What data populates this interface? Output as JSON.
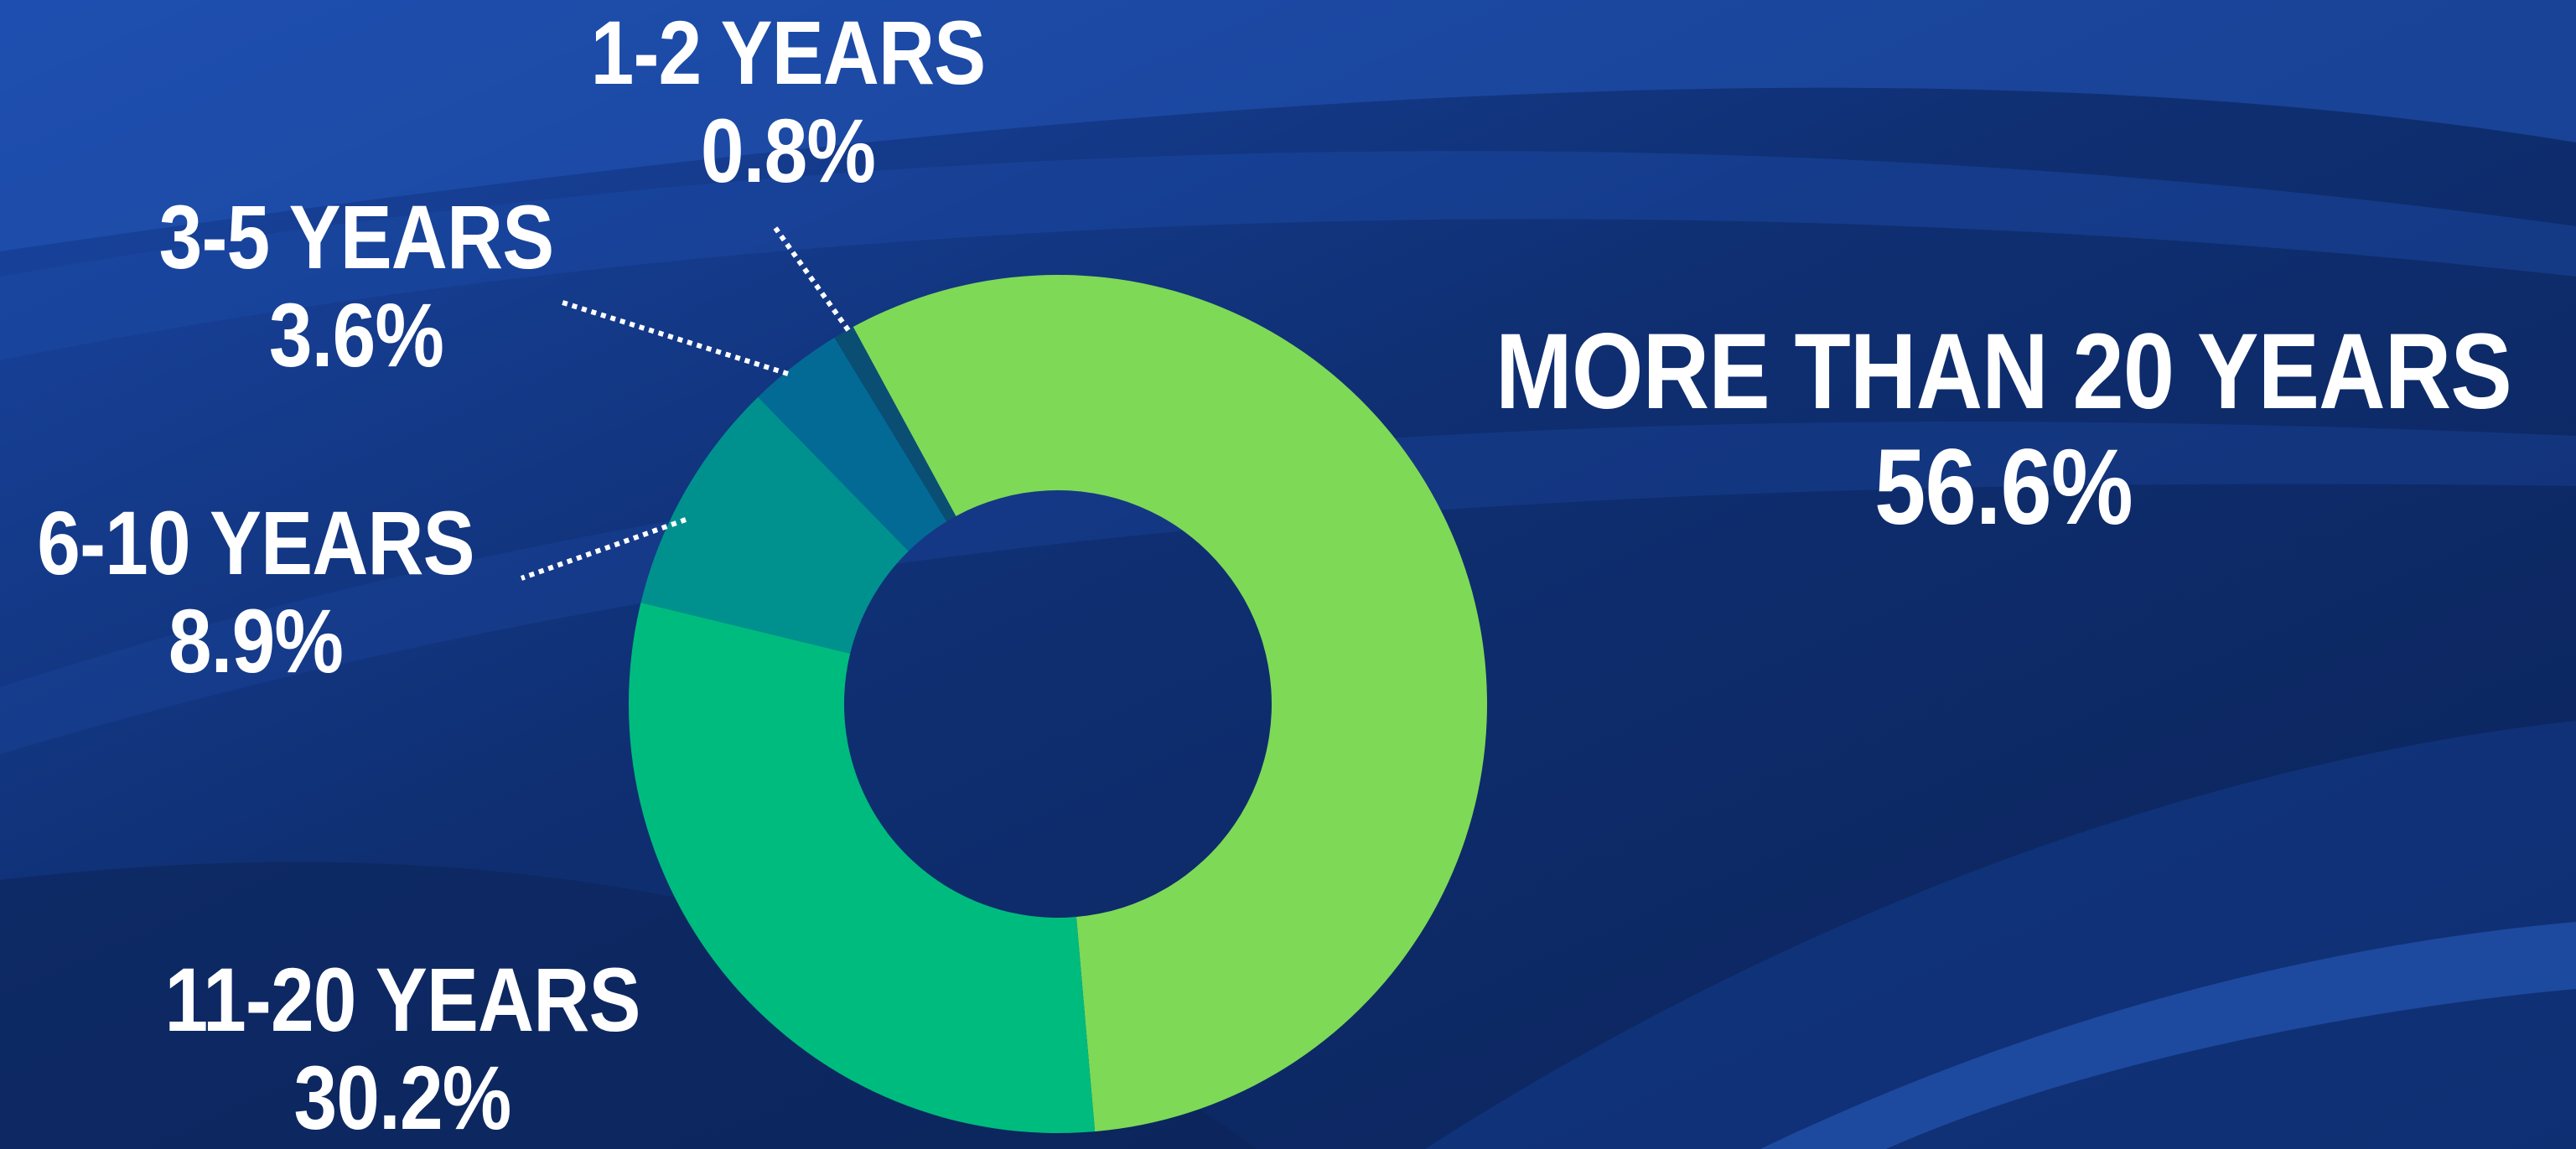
{
  "colors": {
    "background": "#0d2a66",
    "background_light": "#1f4fb0",
    "background_dark": "#0a1f4d",
    "leader_line": "#ffffff",
    "label_text": "#ffffff"
  },
  "chart_data": {
    "type": "pie",
    "donut": true,
    "legend": "none",
    "slices": [
      {
        "label": "MORE THAN 20 YEARS",
        "value_text": "56.6%",
        "value": 56.6,
        "color": "#7ed957"
      },
      {
        "label": "11-20 YEARS",
        "value_text": "30.2%",
        "value": 30.2,
        "color": "#00bb7e"
      },
      {
        "label": "6-10 YEARS",
        "value_text": "8.9%",
        "value": 8.9,
        "color": "#00918f"
      },
      {
        "label": "3-5 YEARS",
        "value_text": "3.6%",
        "value": 3.6,
        "color": "#036a96"
      },
      {
        "label": "1-2 YEARS",
        "value_text": "0.8%",
        "value": 0.8,
        "color": "#0a4e74"
      }
    ]
  }
}
